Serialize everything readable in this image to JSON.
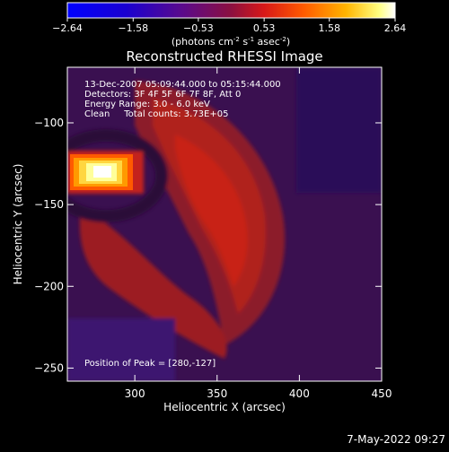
{
  "chart_data": {
    "type": "heatmap",
    "title": "Reconstructed RHESSI Image",
    "xlabel": "Heliocentric X (arcsec)",
    "ylabel": "Heliocentric Y (arcsec)",
    "xlim": [
      259,
      450
    ],
    "ylim": [
      -258,
      -66
    ],
    "x_ticks": [
      300,
      350,
      400,
      450
    ],
    "y_ticks": [
      -100,
      -150,
      -200,
      -250
    ],
    "colorbar": {
      "min": -2.64,
      "max": 2.64,
      "ticks": [
        "-2.64",
        "-1.58",
        "-0.53",
        "0.53",
        "1.58",
        "2.64"
      ],
      "unit_prefix": "(photons cm",
      "unit_exp1": "-2",
      "unit_mid1": " s",
      "unit_exp2": "-1",
      "unit_mid2": " asec",
      "unit_exp3": "-2",
      "unit_suffix": ")"
    },
    "annotations": [
      "13-Dec-2007 05:09:44.000 to 05:15:44.000",
      "Detectors: 3F 4F 5F 6F 7F 8F, Att 0",
      "Energy Range: 3.0 - 6.0 keV",
      "Clean     Total counts: 3.73E+05"
    ],
    "peak_label": "Position of Peak = [280,-127]",
    "peak": [
      280,
      -127
    ],
    "peak_value": 2.64,
    "grid": false,
    "legend": "colorbar-top"
  },
  "footer": {
    "date": "7-May-2022 09:27"
  }
}
